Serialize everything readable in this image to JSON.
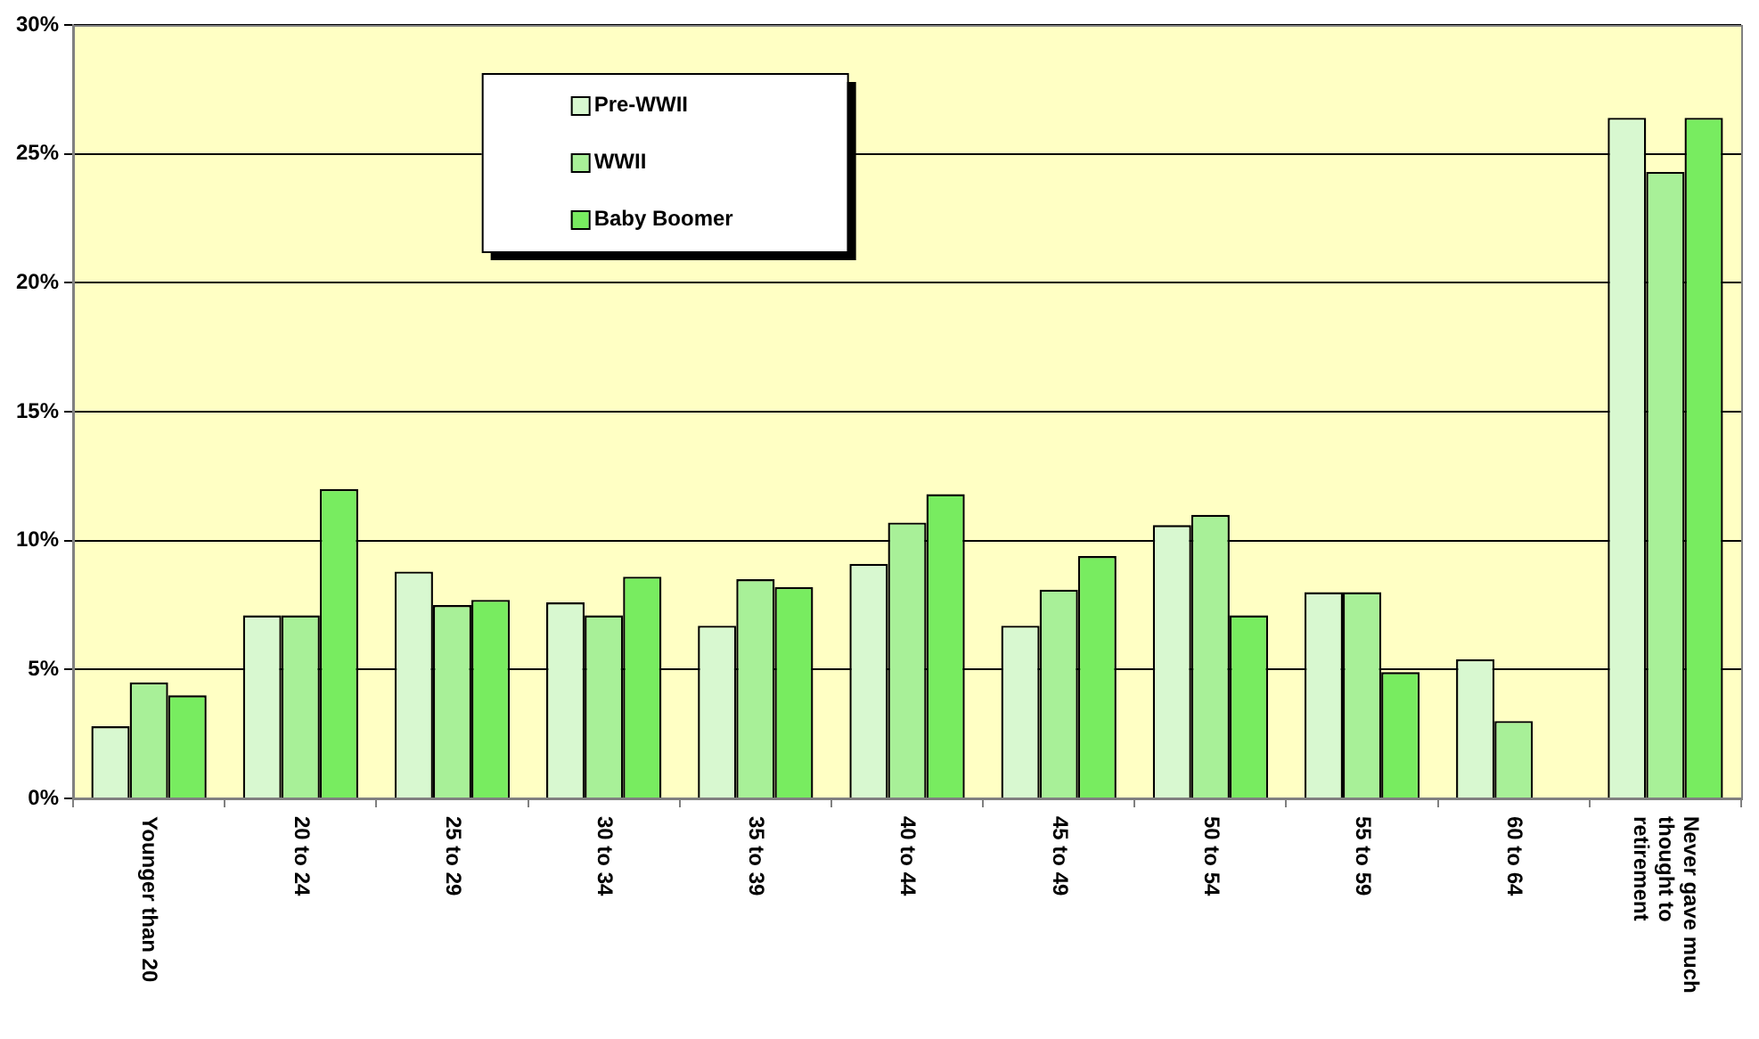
{
  "chart_data": {
    "type": "bar",
    "categories": [
      "Younger than 20",
      "20 to 24",
      "25 to 29",
      "30 to 34",
      "35 to 39",
      "40 to 44",
      "45 to 49",
      "50 to 54",
      "55 to 59",
      "60 to 64",
      "Never gave much thought to retirement"
    ],
    "series": [
      {
        "name": "Pre-WWII",
        "color": "#d8f8d0",
        "values": [
          2.8,
          7.1,
          8.8,
          7.6,
          6.7,
          9.1,
          6.7,
          10.6,
          8.0,
          5.4,
          26.4
        ]
      },
      {
        "name": "WWII",
        "color": "#a8f098",
        "values": [
          4.5,
          7.1,
          7.5,
          7.1,
          8.5,
          10.7,
          8.1,
          11.0,
          8.0,
          3.0,
          24.3
        ]
      },
      {
        "name": "Baby Boomer",
        "color": "#78ec60",
        "values": [
          4.0,
          12.0,
          7.7,
          8.6,
          8.2,
          11.8,
          9.4,
          7.1,
          4.9,
          null,
          26.4
        ]
      }
    ],
    "ylim": [
      0,
      30
    ],
    "yticks": [
      {
        "value": 0,
        "label": "0%"
      },
      {
        "value": 5,
        "label": "5%"
      },
      {
        "value": 10,
        "label": "10%"
      },
      {
        "value": 15,
        "label": "15%"
      },
      {
        "value": 20,
        "label": "20%"
      },
      {
        "value": 25,
        "label": "25%"
      },
      {
        "value": 30,
        "label": "30%"
      }
    ],
    "grid": "y",
    "legend": "top"
  }
}
